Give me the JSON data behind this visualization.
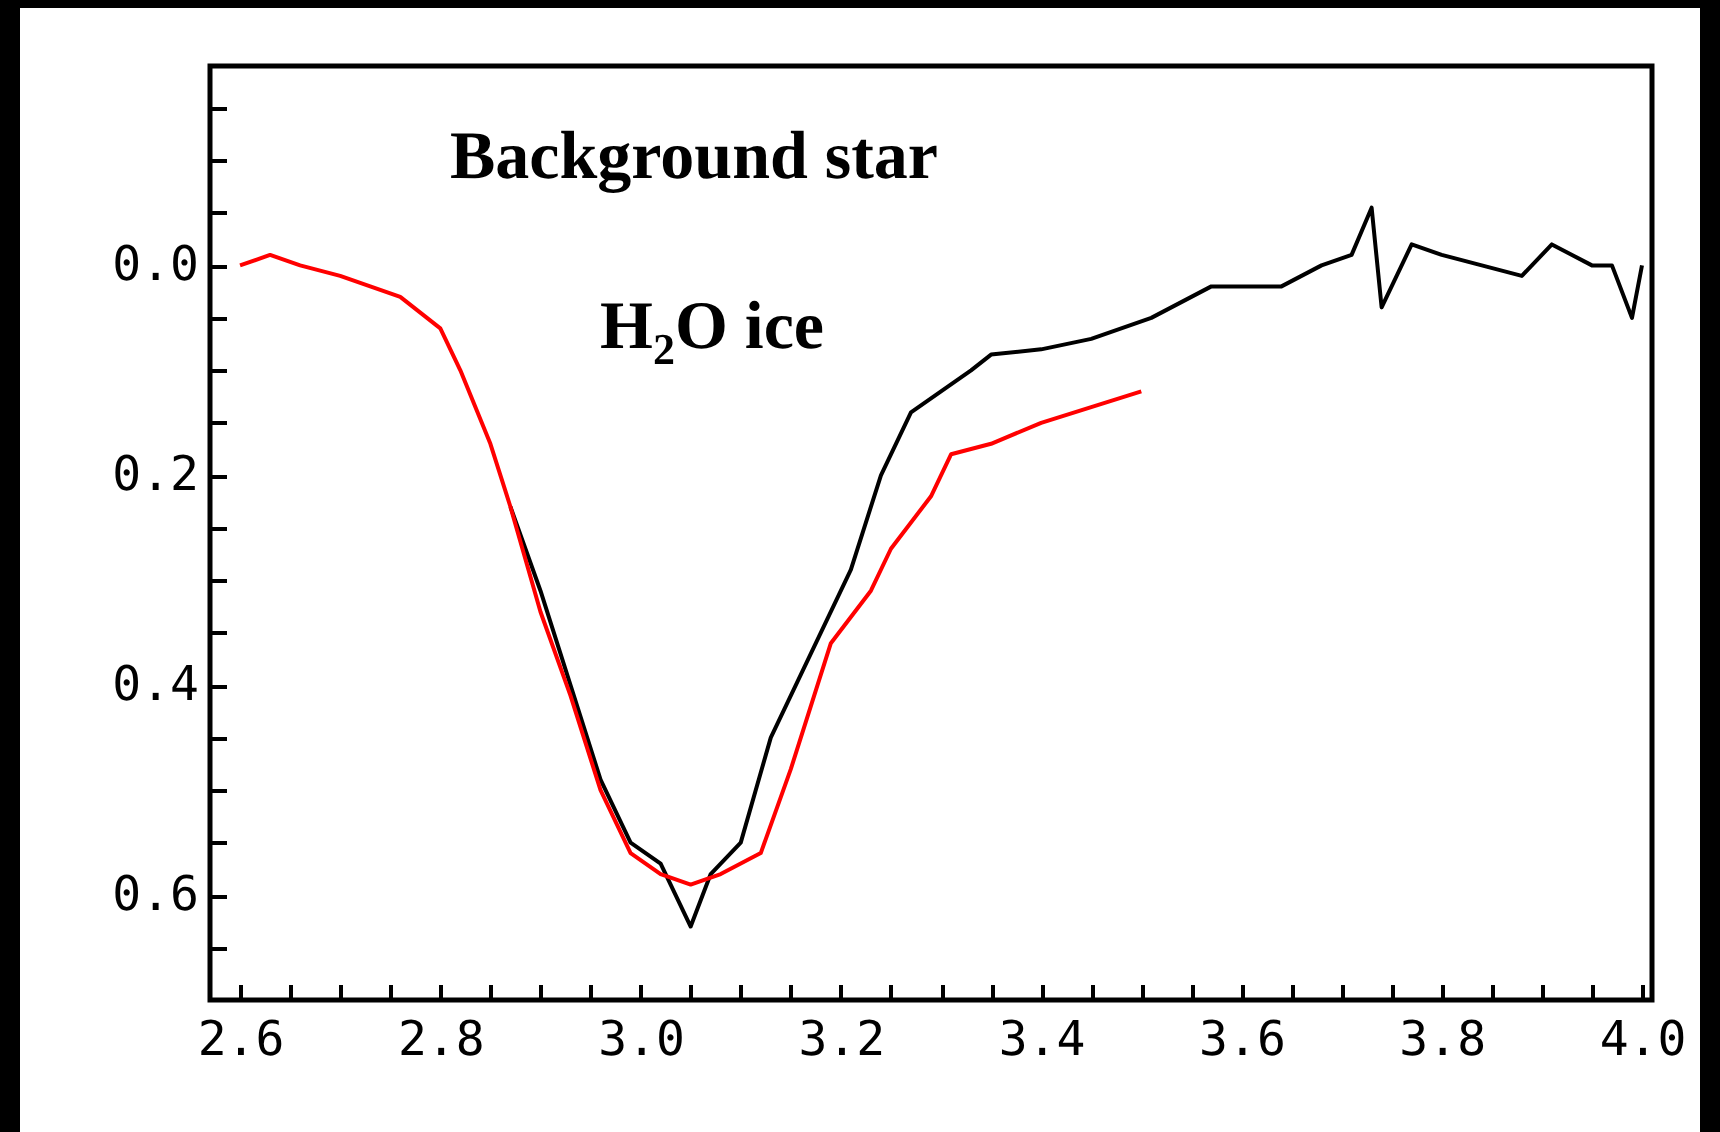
{
  "chart_data": {
    "type": "line",
    "xlim": [
      2.57,
      4.01
    ],
    "ylim": [
      0.7,
      -0.19
    ],
    "xticks": [
      {
        "value": 2.6,
        "label": "2.6"
      },
      {
        "value": 2.65,
        "label": null
      },
      {
        "value": 2.7,
        "label": null
      },
      {
        "value": 2.75,
        "label": null
      },
      {
        "value": 2.8,
        "label": "2.8"
      },
      {
        "value": 2.85,
        "label": null
      },
      {
        "value": 2.9,
        "label": null
      },
      {
        "value": 2.95,
        "label": null
      },
      {
        "value": 3,
        "label": "3.0"
      },
      {
        "value": 3.05,
        "label": null
      },
      {
        "value": 3.1,
        "label": null
      },
      {
        "value": 3.15,
        "label": null
      },
      {
        "value": 3.2,
        "label": "3.2"
      },
      {
        "value": 3.25,
        "label": null
      },
      {
        "value": 3.3,
        "label": null
      },
      {
        "value": 3.35,
        "label": null
      },
      {
        "value": 3.4,
        "label": "3.4"
      },
      {
        "value": 3.45,
        "label": null
      },
      {
        "value": 3.5,
        "label": null
      },
      {
        "value": 3.55,
        "label": null
      },
      {
        "value": 3.6,
        "label": "3.6"
      },
      {
        "value": 3.65,
        "label": null
      },
      {
        "value": 3.7,
        "label": null
      },
      {
        "value": 3.75,
        "label": null
      },
      {
        "value": 3.8,
        "label": "3.8"
      },
      {
        "value": 3.85,
        "label": null
      },
      {
        "value": 3.9,
        "label": null
      },
      {
        "value": 3.95,
        "label": null
      },
      {
        "value": 4,
        "label": "4.0"
      }
    ],
    "yticks": [
      {
        "value": -0.15,
        "label": null
      },
      {
        "value": -0.1,
        "label": null
      },
      {
        "value": -0.05,
        "label": null
      },
      {
        "value": 0,
        "label": "0.0"
      },
      {
        "value": 0.05,
        "label": null
      },
      {
        "value": 0.1,
        "label": null
      },
      {
        "value": 0.15,
        "label": null
      },
      {
        "value": 0.2,
        "label": "0.2"
      },
      {
        "value": 0.25,
        "label": null
      },
      {
        "value": 0.3,
        "label": null
      },
      {
        "value": 0.35,
        "label": null
      },
      {
        "value": 0.4,
        "label": "0.4"
      },
      {
        "value": 0.45,
        "label": null
      },
      {
        "value": 0.5,
        "label": null
      },
      {
        "value": 0.55,
        "label": null
      },
      {
        "value": 0.6,
        "label": "0.6"
      },
      {
        "value": 0.65,
        "label": null
      }
    ],
    "annotations": [
      "Background star",
      "H$_{2}$O ice"
    ],
    "series": [
      {
        "color": "#000000",
        "x": [
          2.87,
          2.9,
          2.93,
          2.96,
          2.99,
          3.02,
          3.05,
          3.07,
          3.1,
          3.13,
          3.17,
          3.21,
          3.24,
          3.27,
          3.3,
          3.33,
          3.35,
          3.4,
          3.45,
          3.51,
          3.57,
          3.64,
          3.68,
          3.71,
          3.73,
          3.74,
          3.77,
          3.8,
          3.84,
          3.88,
          3.91,
          3.95,
          3.97,
          3.99,
          4.0
        ],
        "values": [
          0.23,
          0.31,
          0.4,
          0.49,
          0.55,
          0.57,
          0.63,
          0.58,
          0.55,
          0.45,
          0.37,
          0.29,
          0.2,
          0.14,
          0.12,
          0.1,
          0.085,
          0.08,
          0.07,
          0.05,
          0.02,
          0.02,
          0.0,
          -0.01,
          -0.055,
          0.04,
          -0.02,
          -0.01,
          0.0,
          0.01,
          -0.02,
          0.0,
          0.0,
          0.05,
          0.0
        ]
      },
      {
        "color": "#ff0000",
        "x": [
          2.6,
          2.63,
          2.66,
          2.7,
          2.73,
          2.76,
          2.8,
          2.82,
          2.85,
          2.87,
          2.9,
          2.93,
          2.96,
          2.99,
          3.02,
          3.05,
          3.08,
          3.12,
          3.15,
          3.19,
          3.23,
          3.25,
          3.29,
          3.31,
          3.35,
          3.4,
          3.45,
          3.5
        ],
        "values": [
          0,
          -0.01,
          0,
          0.01,
          0.02,
          0.03,
          0.06,
          0.1,
          0.17,
          0.23,
          0.33,
          0.41,
          0.5,
          0.56,
          0.58,
          0.59,
          0.58,
          0.56,
          0.48,
          0.36,
          0.31,
          0.27,
          0.22,
          0.18,
          0.17,
          0.15,
          0.135,
          0.12
        ]
      }
    ]
  }
}
